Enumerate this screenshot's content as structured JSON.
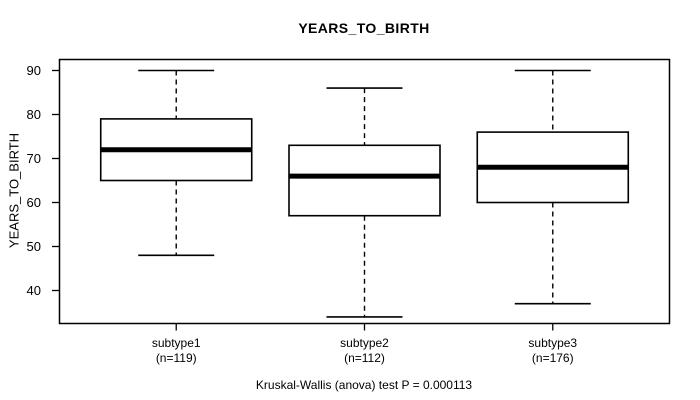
{
  "chart_data": {
    "type": "boxplot",
    "title": "YEARS_TO_BIRTH",
    "ylabel": "YEARS_TO_BIRTH",
    "caption": "Kruskal-Wallis (anova) test P = 0.000113",
    "ylim": [
      32.5,
      92.5
    ],
    "yticks": [
      90,
      80,
      70,
      60,
      50,
      40
    ],
    "grid": false,
    "legend": "none",
    "groups": [
      {
        "label": "subtype1",
        "n_label": "(n=119)",
        "n": 119,
        "whisker_low": 48,
        "q1": 65,
        "median": 72,
        "q3": 79,
        "whisker_high": 90
      },
      {
        "label": "subtype2",
        "n_label": "(n=112)",
        "n": 112,
        "whisker_low": 34,
        "q1": 57,
        "median": 66,
        "q3": 73,
        "whisker_high": 86
      },
      {
        "label": "subtype3",
        "n_label": "(n=176)",
        "n": 176,
        "whisker_low": 37,
        "q1": 60,
        "median": 68,
        "q3": 76,
        "whisker_high": 90
      }
    ],
    "colors": {
      "line": "#000000",
      "background": "#ffffff",
      "box_fill": "#ffffff"
    }
  }
}
